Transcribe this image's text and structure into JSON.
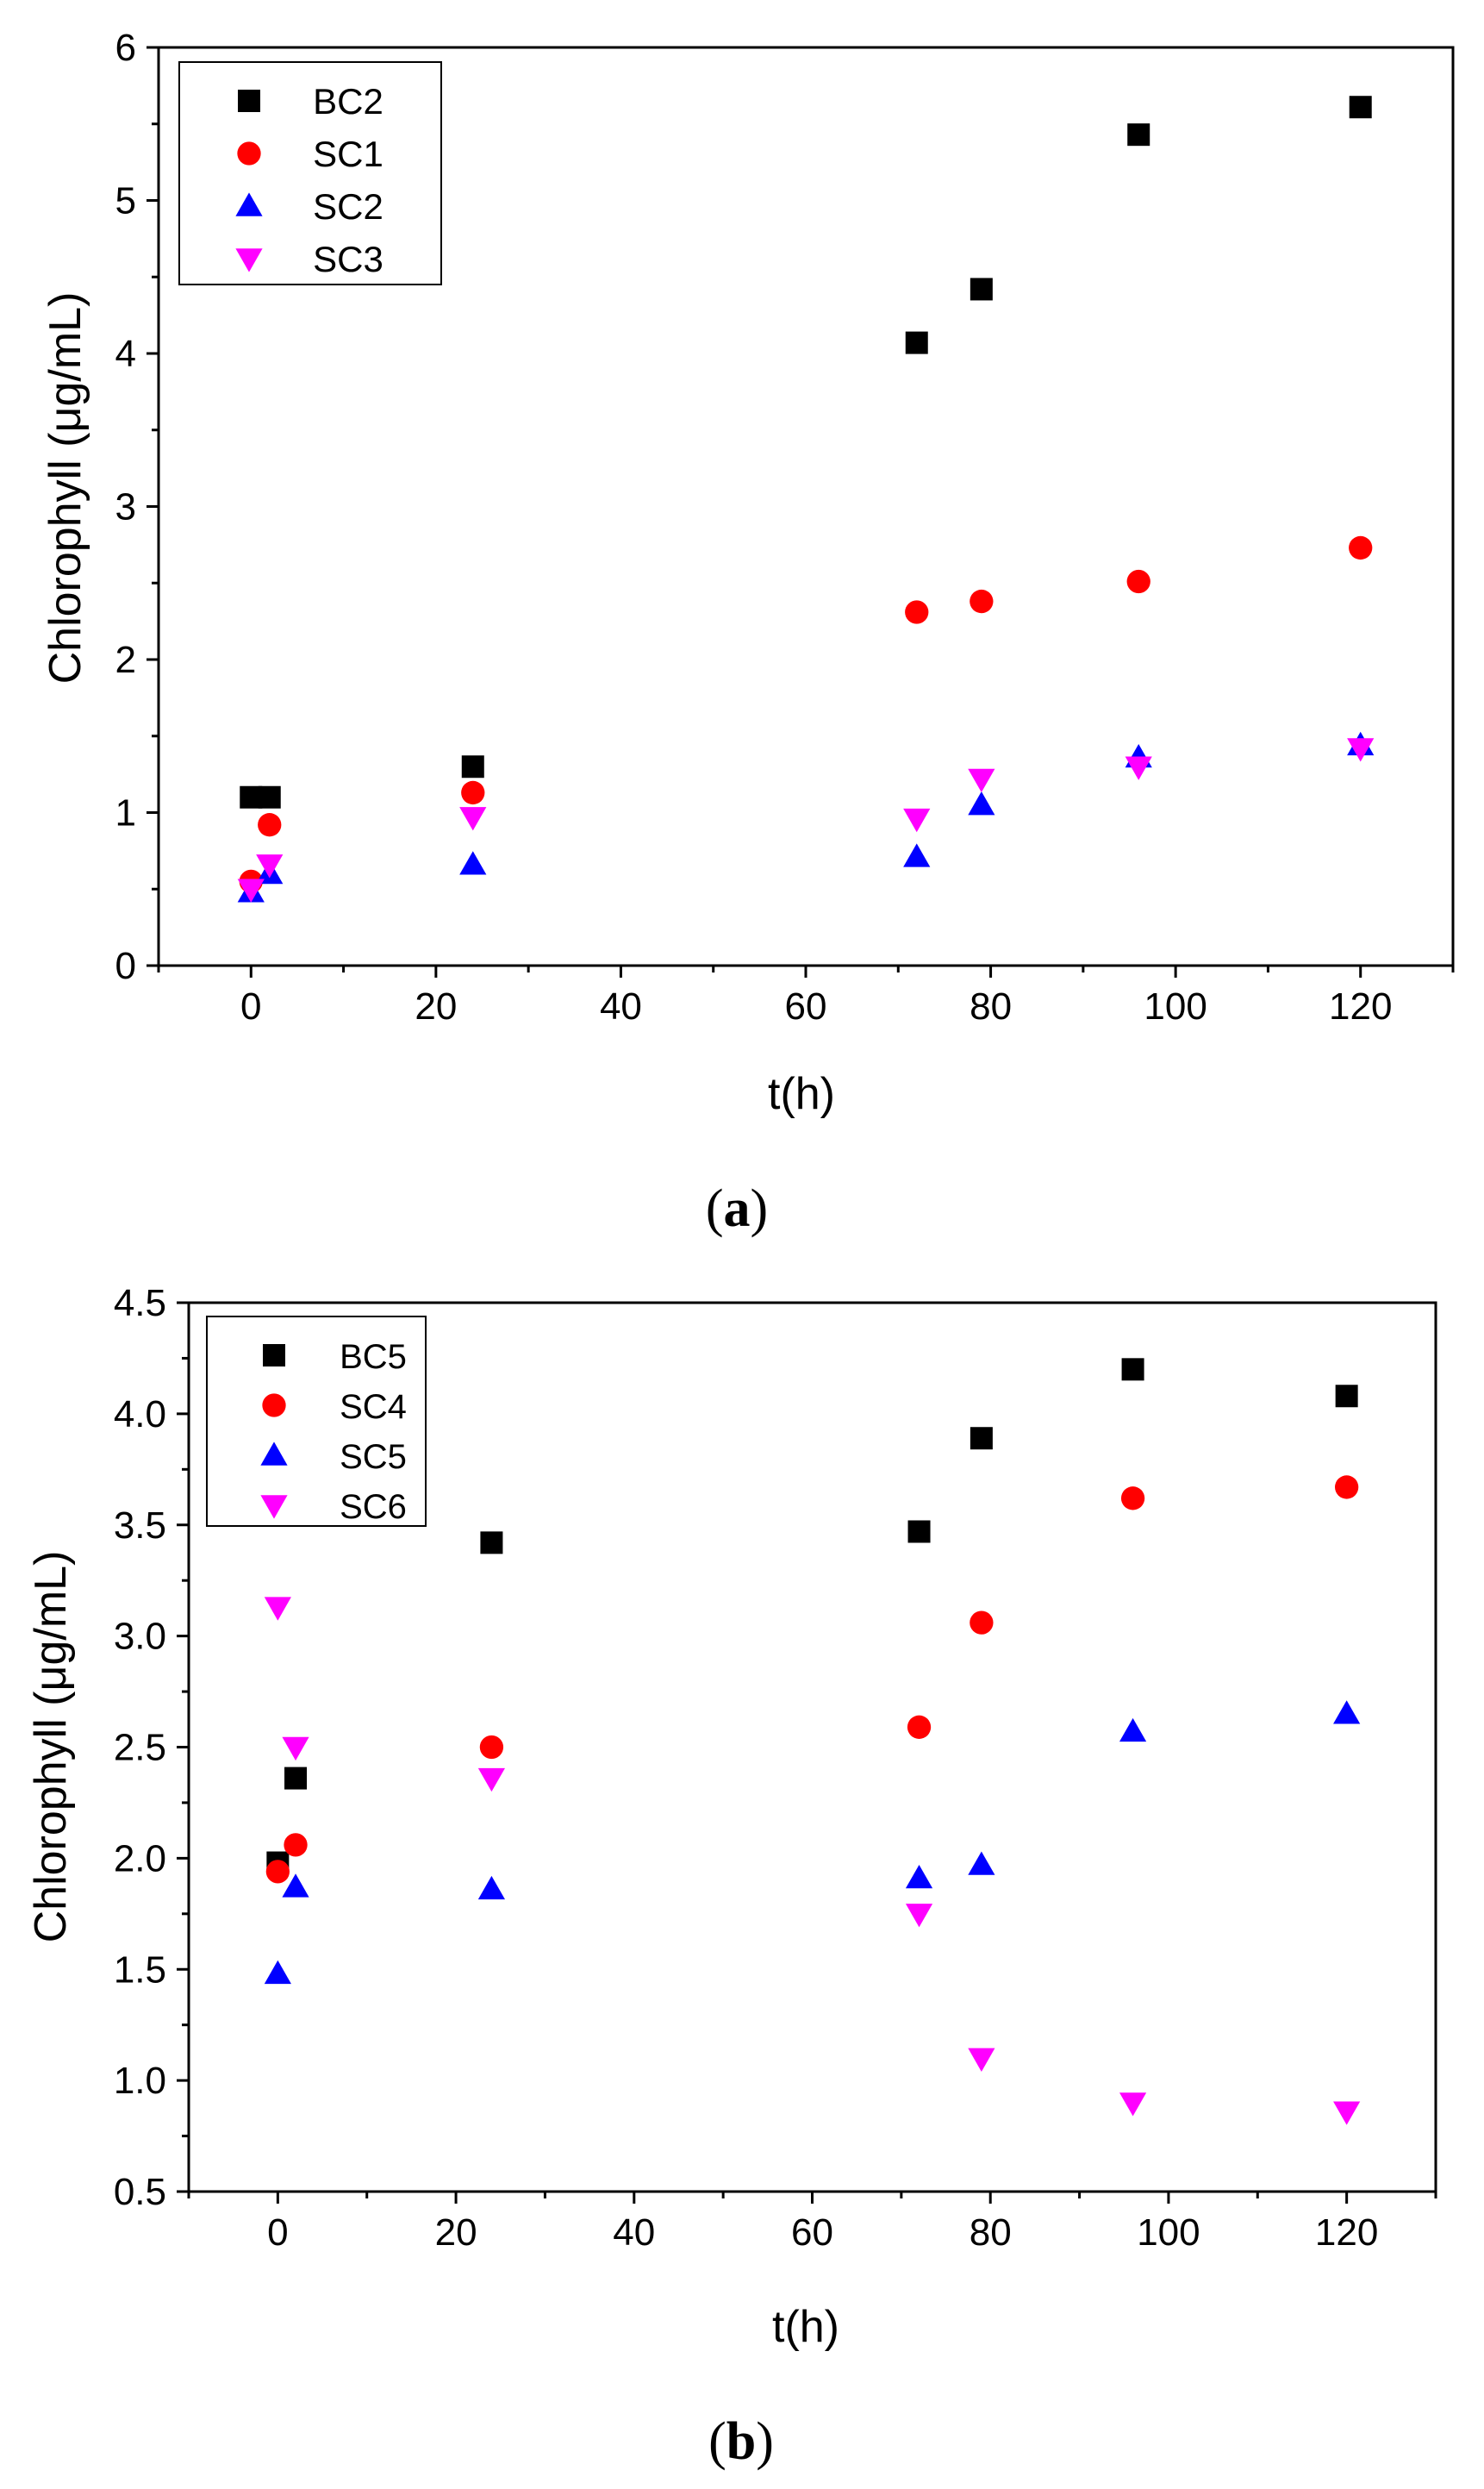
{
  "chart_data": [
    {
      "type": "scatter",
      "panel_label_open": "(",
      "panel_label_letter": "a",
      "panel_label_close": ")",
      "xlabel": "t(h)",
      "ylabel": "Chlorophyll (μg/mL)",
      "xlim": [
        -10,
        130
      ],
      "ylim": [
        0,
        6
      ],
      "x_major_ticks": [
        0,
        20,
        40,
        60,
        80,
        100,
        120
      ],
      "x_tick_labels": [
        "0",
        "20",
        "40",
        "60",
        "80",
        "100",
        "120"
      ],
      "x_minor_ticks": [
        -10,
        10,
        30,
        50,
        70,
        90,
        110,
        130
      ],
      "y_major_ticks": [
        0,
        1,
        2,
        3,
        4,
        5,
        6
      ],
      "y_tick_labels": [
        "0",
        "1",
        "2",
        "3",
        "4",
        "5",
        "6"
      ],
      "y_minor_ticks": [
        0.5,
        1.5,
        2.5,
        3.5,
        4.5,
        5.5
      ],
      "legend_position": "top-left",
      "series": [
        {
          "name": "BC2",
          "marker": "square",
          "color": "#000000",
          "x": [
            0,
            2,
            24,
            72,
            79,
            96,
            120
          ],
          "y": [
            1.1,
            1.1,
            1.3,
            4.07,
            4.42,
            5.43,
            5.61
          ]
        },
        {
          "name": "SC1",
          "marker": "circle",
          "color": "#ff0000",
          "x": [
            0,
            2,
            24,
            72,
            79,
            96,
            120
          ],
          "y": [
            0.55,
            0.92,
            1.13,
            2.31,
            2.38,
            2.51,
            2.73
          ]
        },
        {
          "name": "SC2",
          "marker": "triangle-up",
          "color": "#0000ff",
          "x": [
            0,
            2,
            24,
            72,
            79,
            96,
            120
          ],
          "y": [
            0.48,
            0.6,
            0.66,
            0.71,
            1.05,
            1.36,
            1.44
          ]
        },
        {
          "name": "SC3",
          "marker": "triangle-down",
          "color": "#ff00ff",
          "x": [
            0,
            2,
            24,
            72,
            79,
            96,
            120
          ],
          "y": [
            0.5,
            0.66,
            0.97,
            0.96,
            1.22,
            1.3,
            1.42
          ]
        }
      ]
    },
    {
      "type": "scatter",
      "panel_label_open": "(",
      "panel_label_letter": "b",
      "panel_label_close": ")",
      "xlabel": "t(h)",
      "ylabel": "Chlorophyll (μg/mL)",
      "xlim": [
        -10,
        130
      ],
      "ylim": [
        0.5,
        4.5
      ],
      "x_major_ticks": [
        0,
        20,
        40,
        60,
        80,
        100,
        120
      ],
      "x_tick_labels": [
        "0",
        "20",
        "40",
        "60",
        "80",
        "100",
        "120"
      ],
      "x_minor_ticks": [
        -10,
        10,
        30,
        50,
        70,
        90,
        110,
        130
      ],
      "y_major_ticks": [
        0.5,
        1.0,
        1.5,
        2.0,
        2.5,
        3.0,
        3.5,
        4.0,
        4.5
      ],
      "y_tick_labels": [
        "0.5",
        "1.0",
        "1.5",
        "2.0",
        "2.5",
        "3.0",
        "3.5",
        "4.0",
        "4.5"
      ],
      "y_minor_ticks": [
        0.75,
        1.25,
        1.75,
        2.25,
        2.75,
        3.25,
        3.75,
        4.25
      ],
      "legend_position": "top-left",
      "series": [
        {
          "name": "BC5",
          "marker": "square",
          "color": "#000000",
          "x": [
            0,
            2,
            24,
            72,
            79,
            96,
            120
          ],
          "y": [
            1.98,
            2.36,
            3.42,
            3.47,
            3.89,
            4.2,
            4.08
          ]
        },
        {
          "name": "SC4",
          "marker": "circle",
          "color": "#ff0000",
          "x": [
            0,
            2,
            24,
            72,
            79,
            96,
            120
          ],
          "y": [
            1.94,
            2.06,
            2.5,
            2.59,
            3.06,
            3.62,
            3.67
          ]
        },
        {
          "name": "SC5",
          "marker": "triangle-up",
          "color": "#0000ff",
          "x": [
            0,
            2,
            24,
            72,
            79,
            96,
            120
          ],
          "y": [
            1.48,
            1.87,
            1.86,
            1.91,
            1.97,
            2.57,
            2.65
          ]
        },
        {
          "name": "SC6",
          "marker": "triangle-down",
          "color": "#ff00ff",
          "x": [
            0,
            2,
            24,
            72,
            79,
            96,
            120
          ],
          "y": [
            3.13,
            2.5,
            2.36,
            1.75,
            1.1,
            0.9,
            0.86
          ]
        }
      ]
    }
  ]
}
